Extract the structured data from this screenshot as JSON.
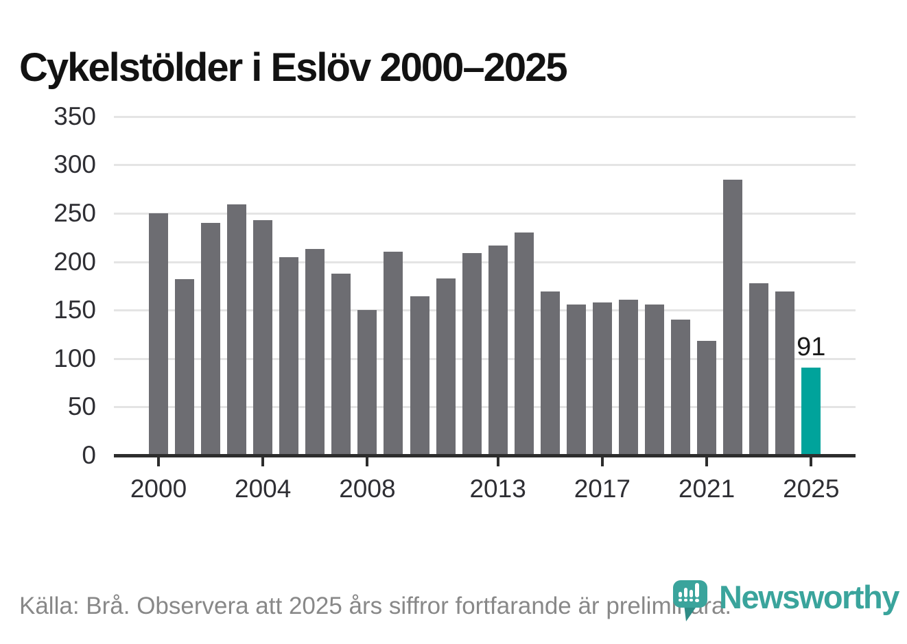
{
  "title": "Cykelstölder i Eslöv 2000–2025",
  "footer": {
    "source_note": "Källa: Brå. Observera att 2025 års siffror fortfarande är preliminära."
  },
  "branding": {
    "logo_text": "Newsworthy",
    "logo_icon": "newsworthy-speech-bubble-barchart-icon",
    "brand_color": "#3aa49c"
  },
  "colors": {
    "bar_default": "#6d6d72",
    "bar_highlight": "#00a39b",
    "gridline": "#e4e4e4",
    "axis_line": "#2d2d2d",
    "axis_label": "#2e2e33",
    "title_text": "#121212",
    "footer_text": "#888888",
    "annotation_text": "#1a1a1a",
    "logo_tail": "#2f8c86"
  },
  "chart_data": {
    "type": "bar",
    "title": "Cykelstölder i Eslöv 2000–2025",
    "x": [
      2000,
      2001,
      2002,
      2003,
      2004,
      2005,
      2006,
      2007,
      2008,
      2009,
      2010,
      2011,
      2012,
      2013,
      2014,
      2015,
      2016,
      2017,
      2018,
      2019,
      2020,
      2021,
      2022,
      2023,
      2024,
      2025
    ],
    "values": [
      250,
      182,
      240,
      259,
      243,
      205,
      213,
      188,
      150,
      210,
      164,
      183,
      209,
      217,
      230,
      169,
      156,
      158,
      161,
      156,
      140,
      118,
      285,
      178,
      169,
      91
    ],
    "highlight_year": 2025,
    "annotation": {
      "year": 2025,
      "label": "91"
    },
    "x_tick_years": [
      2000,
      2004,
      2008,
      2013,
      2017,
      2021,
      2025
    ],
    "y_ticks": [
      0,
      50,
      100,
      150,
      200,
      250,
      300,
      350
    ],
    "ylim": [
      0,
      350
    ],
    "xlabel": "",
    "ylabel": "",
    "grid": "horizontal",
    "legend": "none"
  }
}
